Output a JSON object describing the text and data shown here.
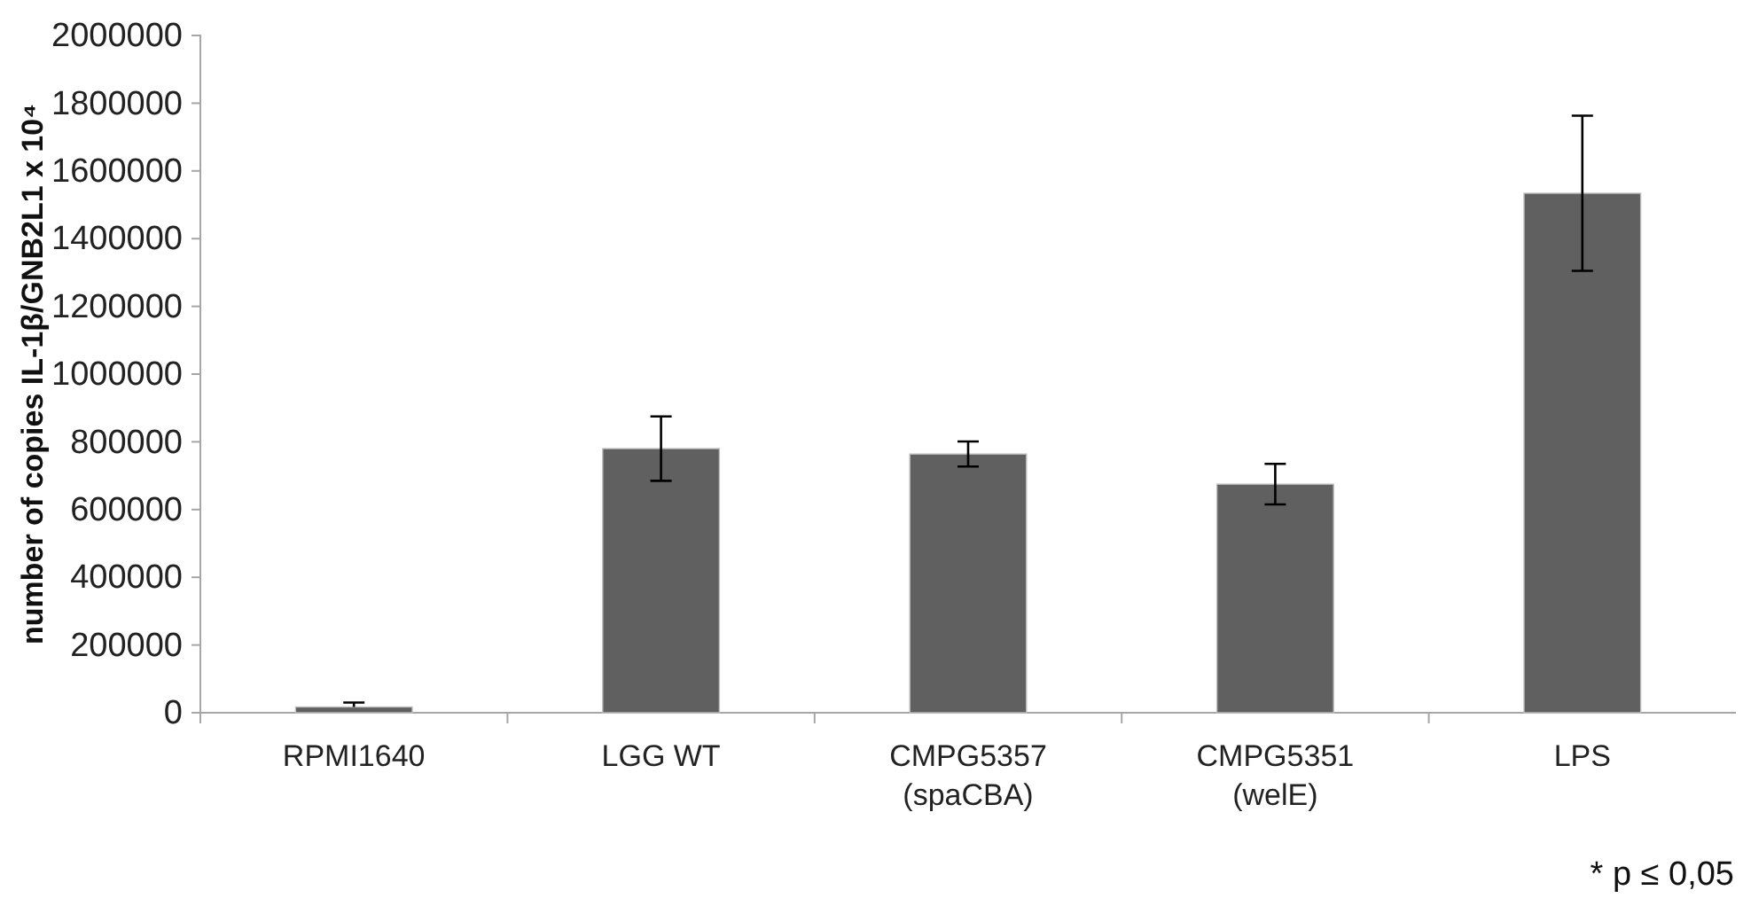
{
  "chart_data": {
    "type": "bar",
    "ylabel": "number of copies IL-1β/GNB2L1 x 10⁴",
    "categories": [
      "RPMI1640",
      "LGG WT",
      "CMPG5357\n(spaCBA)",
      "CMPG5351\n(welE)",
      "LPS"
    ],
    "values": [
      17000,
      780000,
      764000,
      675000,
      1534000
    ],
    "errors": [
      [
        17000,
        30000
      ],
      95000,
      37000,
      60000,
      229000
    ],
    "color": "#606060",
    "ylim": [
      0,
      2000000
    ],
    "yticks": [
      0,
      200000,
      400000,
      600000,
      800000,
      1000000,
      1200000,
      1400000,
      1600000,
      1800000,
      2000000
    ],
    "grid": false,
    "annotations": [
      "* p ≤ 0,05"
    ]
  }
}
